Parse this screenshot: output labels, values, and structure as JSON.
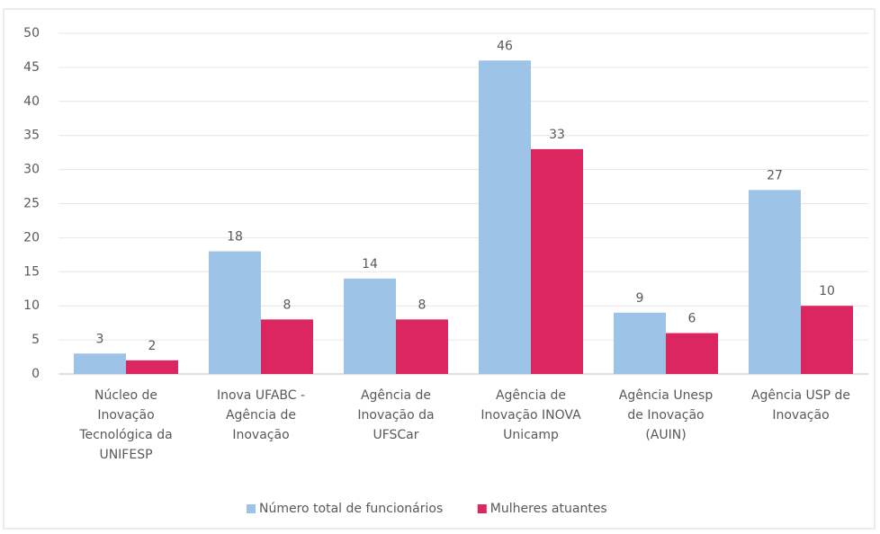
{
  "chart_data": {
    "type": "bar",
    "categories": [
      "Núcleo de\nInovação\nTecnológica da\nUNIFESP",
      "Inova UFABC -\nAgência de\nInovação",
      "Agência de\nInovação da\nUFSCar",
      "Agência de\nInovação INOVA\nUnicamp",
      "Agência Unesp\nde Inovação\n(AUIN)",
      "Agência USP de\nInovação"
    ],
    "series": [
      {
        "name": "Número total de funcionários",
        "color": "#9dc3e6",
        "values": [
          3,
          18,
          14,
          46,
          9,
          27
        ]
      },
      {
        "name": "Mulheres atuantes",
        "color": "#dc2660",
        "values": [
          2,
          8,
          8,
          33,
          6,
          10
        ]
      }
    ],
    "ylim": [
      0,
      50
    ],
    "yticks": [
      0,
      5,
      10,
      15,
      20,
      25,
      30,
      35,
      40,
      45,
      50
    ],
    "grid": true,
    "legend": "bottom"
  }
}
